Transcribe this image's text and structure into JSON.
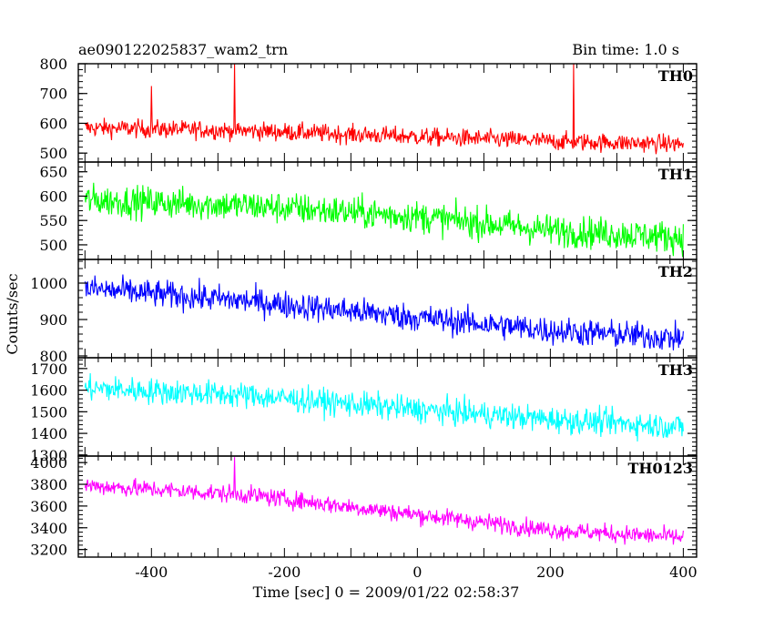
{
  "chart_data": {
    "type": "line",
    "title": "ae090122025837_wam2_trn",
    "subtitle": "Bin time: 1.0 s",
    "xlabel": "Time [sec] 0 = 2009/01/22 02:58:37",
    "ylabel": "Counts/sec",
    "xlim": [
      -510,
      420
    ],
    "xticks": [
      -400,
      -200,
      0,
      200,
      400
    ],
    "x_range": [
      -500,
      400
    ],
    "bin_time_s": 1.0,
    "grid": false,
    "panels": [
      {
        "name": "TH0",
        "color": "#ff0000",
        "ylim": [
          470,
          800
        ],
        "yticks": [
          500,
          600,
          700,
          800
        ],
        "trend": [
          [
            -500,
            585
          ],
          [
            -250,
            575
          ],
          [
            0,
            555
          ],
          [
            200,
            540
          ],
          [
            400,
            530
          ]
        ],
        "noise": 28,
        "spikes": [
          [
            -400,
            725
          ],
          [
            -275,
            800
          ],
          [
            235,
            800
          ]
        ]
      },
      {
        "name": "TH1",
        "color": "#00ff00",
        "ylim": [
          470,
          670
        ],
        "yticks": [
          500,
          550,
          600,
          650
        ],
        "trend": [
          [
            -500,
            592
          ],
          [
            -250,
            580
          ],
          [
            0,
            558
          ],
          [
            200,
            530
          ],
          [
            400,
            515
          ]
        ],
        "noise": 30,
        "spikes": []
      },
      {
        "name": "TH2",
        "color": "#0000ff",
        "ylim": [
          795,
          1065
        ],
        "yticks": [
          800,
          900,
          1000
        ],
        "trend": [
          [
            -500,
            985
          ],
          [
            -250,
            950
          ],
          [
            0,
            905
          ],
          [
            200,
            870
          ],
          [
            400,
            848
          ]
        ],
        "noise": 35,
        "spikes": []
      },
      {
        "name": "TH3",
        "color": "#00ffff",
        "ylim": [
          1295,
          1750
        ],
        "yticks": [
          1300,
          1400,
          1500,
          1600,
          1700
        ],
        "trend": [
          [
            -500,
            1610
          ],
          [
            -250,
            1575
          ],
          [
            0,
            1510
          ],
          [
            200,
            1465
          ],
          [
            400,
            1430
          ]
        ],
        "noise": 55,
        "spikes": []
      },
      {
        "name": "TH0123",
        "color": "#ff00ff",
        "ylim": [
          3130,
          4060
        ],
        "yticks": [
          3200,
          3400,
          3600,
          3800,
          4000
        ],
        "trend": [
          [
            -500,
            3790
          ],
          [
            -250,
            3700
          ],
          [
            0,
            3520
          ],
          [
            200,
            3380
          ],
          [
            400,
            3310
          ]
        ],
        "noise": 75,
        "spikes": [
          [
            -275,
            4050
          ]
        ]
      }
    ]
  }
}
